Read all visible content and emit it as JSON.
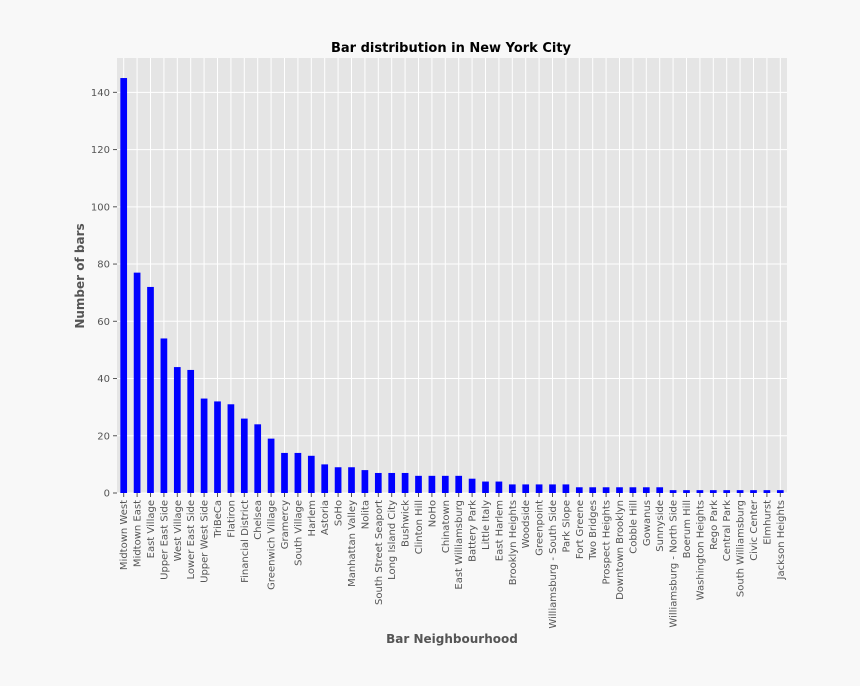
{
  "chart_data": {
    "type": "bar",
    "title": "Bar distribution in New York City",
    "xlabel": "Bar Neighbourhood",
    "ylabel": "Number of bars",
    "ylim": [
      0,
      152
    ],
    "yticks": [
      0,
      20,
      40,
      60,
      80,
      100,
      120,
      140
    ],
    "grid": true,
    "colors": {
      "bar": "#0000ff",
      "plot_bg": "#e5e5e5",
      "grid": "#ffffff",
      "text": "#555555"
    },
    "categories": [
      "Midtown West",
      "Midtown East",
      "East Village",
      "Upper East Side",
      "West Village",
      "Lower East Side",
      "Upper West Side",
      "TriBeCa",
      "Flatiron",
      "Financial District",
      "Chelsea",
      "Greenwich Village",
      "Gramercy",
      "South Village",
      "Harlem",
      "Astoria",
      "SoHo",
      "Manhattan Valley",
      "Nolita",
      "South Street Seaport",
      "Long Island City",
      "Bushwick",
      "Clinton Hill",
      "NoHo",
      "Chinatown",
      "East Williamsburg",
      "Battery Park",
      "Little Italy",
      "East Harlem",
      "Brooklyn Heights",
      "Woodside",
      "Greenpoint",
      "Williamsburg - South Side",
      "Park Slope",
      "Fort Greene",
      "Two Bridges",
      "Prospect Heights",
      "Downtown Brooklyn",
      "Cobble Hill",
      "Gowanus",
      "Sunnyside",
      "Williamsburg - North Side",
      "Boerum Hill",
      "Washington Heights",
      "Rego Park",
      "Central Park",
      "South Williamsburg",
      "Civic Center",
      "Elmhurst",
      "Jackson Heights"
    ],
    "values": [
      145,
      77,
      72,
      54,
      44,
      43,
      33,
      32,
      31,
      26,
      24,
      19,
      14,
      14,
      13,
      10,
      9,
      9,
      8,
      7,
      7,
      7,
      6,
      6,
      6,
      6,
      5,
      4,
      4,
      3,
      3,
      3,
      3,
      3,
      2,
      2,
      2,
      2,
      2,
      2,
      2,
      1,
      1,
      1,
      1,
      1,
      1,
      1,
      1,
      1
    ]
  }
}
